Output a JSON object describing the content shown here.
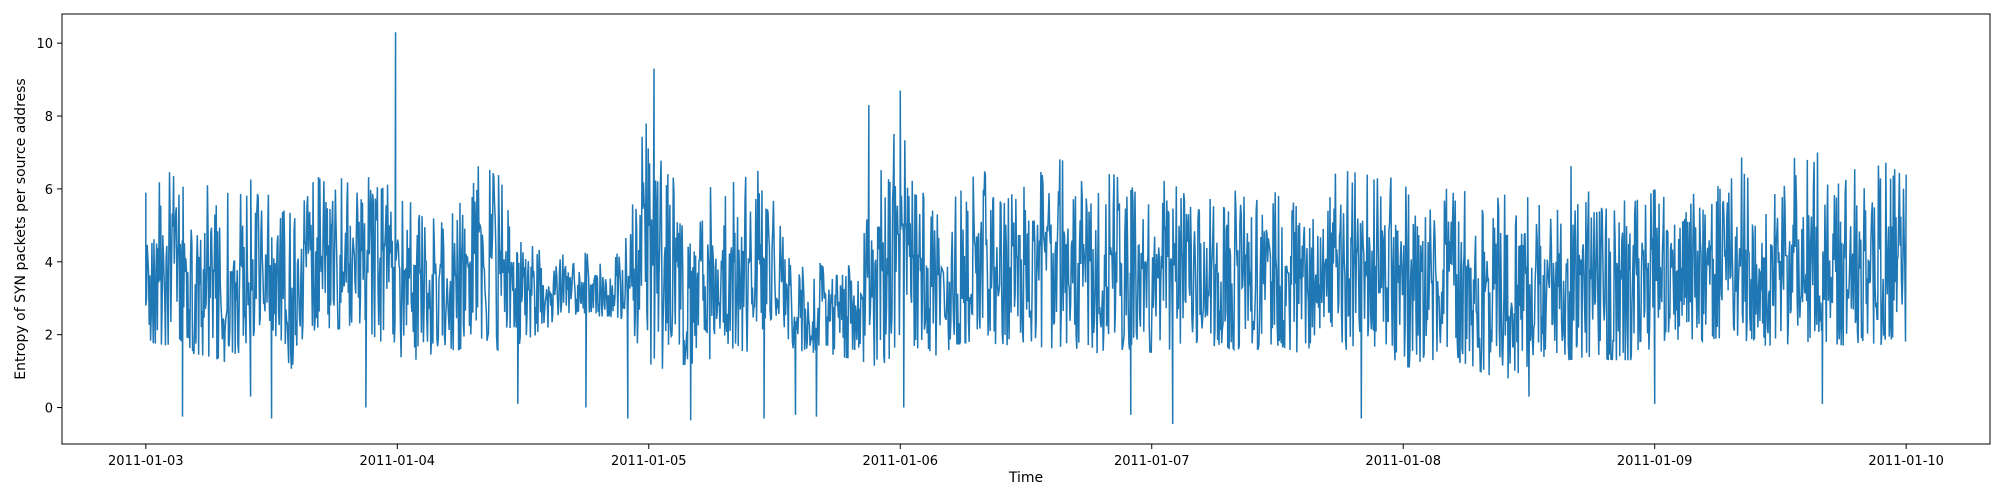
{
  "chart_data": {
    "type": "line",
    "title": "",
    "xlabel": "Time",
    "ylabel": "Entropy of SYN packets per source address",
    "xlim": [
      "2011-01-02T16:00",
      "2011-01-10T08:00"
    ],
    "ylim": [
      -1,
      10.8
    ],
    "x_ticks": [
      "2011-01-03",
      "2011-01-04",
      "2011-01-05",
      "2011-01-06",
      "2011-01-07",
      "2011-01-08",
      "2011-01-09",
      "2011-01-10"
    ],
    "y_ticks": [
      0,
      2,
      4,
      6,
      8,
      10
    ],
    "grid": false,
    "legend": "none",
    "series": [
      {
        "color": "#1f77b4",
        "x": [
          "2011-01-03T00:00",
          "2011-01-03T02:00",
          "2011-01-03T04:00",
          "2011-01-03T06:00",
          "2011-01-03T08:00",
          "2011-01-03T10:00",
          "2011-01-03T12:00",
          "2011-01-03T14:00",
          "2011-01-03T16:00",
          "2011-01-03T18:00",
          "2011-01-03T20:00",
          "2011-01-03T22:00",
          "2011-01-04T00:00",
          "2011-01-04T02:00",
          "2011-01-04T04:00",
          "2011-01-04T06:00",
          "2011-01-04T08:00",
          "2011-01-04T10:00",
          "2011-01-04T12:00",
          "2011-01-04T14:00",
          "2011-01-04T16:00",
          "2011-01-04T18:00",
          "2011-01-04T20:00",
          "2011-01-04T22:00",
          "2011-01-05T00:00",
          "2011-01-05T02:00",
          "2011-01-05T04:00",
          "2011-01-05T06:00",
          "2011-01-05T08:00",
          "2011-01-05T10:00",
          "2011-01-05T12:00",
          "2011-01-05T14:00",
          "2011-01-05T16:00",
          "2011-01-05T18:00",
          "2011-01-05T20:00",
          "2011-01-05T22:00",
          "2011-01-06T00:00",
          "2011-01-06T02:00",
          "2011-01-06T04:00",
          "2011-01-06T06:00",
          "2011-01-06T08:00",
          "2011-01-06T10:00",
          "2011-01-06T12:00",
          "2011-01-06T14:00",
          "2011-01-06T16:00",
          "2011-01-06T18:00",
          "2011-01-06T20:00",
          "2011-01-06T22:00",
          "2011-01-07T00:00",
          "2011-01-07T02:00",
          "2011-01-07T04:00",
          "2011-01-07T06:00",
          "2011-01-07T08:00",
          "2011-01-07T10:00",
          "2011-01-07T12:00",
          "2011-01-07T14:00",
          "2011-01-07T16:00",
          "2011-01-07T18:00",
          "2011-01-07T20:00",
          "2011-01-07T22:00",
          "2011-01-08T00:00",
          "2011-01-08T02:00",
          "2011-01-08T04:00",
          "2011-01-08T06:00",
          "2011-01-08T08:00",
          "2011-01-08T10:00",
          "2011-01-08T12:00",
          "2011-01-08T14:00",
          "2011-01-08T16:00",
          "2011-01-08T18:00",
          "2011-01-08T20:00",
          "2011-01-08T22:00",
          "2011-01-09T00:00",
          "2011-01-09T02:00",
          "2011-01-09T04:00",
          "2011-01-09T06:00",
          "2011-01-09T08:00",
          "2011-01-09T10:00",
          "2011-01-09T12:00",
          "2011-01-09T14:00",
          "2011-01-09T16:00",
          "2011-01-09T18:00",
          "2011-01-09T20:00",
          "2011-01-09T22:00",
          "2011-01-10T00:00"
        ],
        "min": [
          1.8,
          1.7,
          1.5,
          1.4,
          1.2,
          1.9,
          2.2,
          1.0,
          2.0,
          2.1,
          2.3,
          1.9,
          1.4,
          1.3,
          1.5,
          1.6,
          1.9,
          1.5,
          1.8,
          2.1,
          2.6,
          2.5,
          2.5,
          2.4,
          1.0,
          1.1,
          1.2,
          1.3,
          1.6,
          1.5,
          2.6,
          1.5,
          1.5,
          1.4,
          1.3,
          1.1,
          1.6,
          1.5,
          1.4,
          1.8,
          1.6,
          1.7,
          1.8,
          1.6,
          1.7,
          1.5,
          1.4,
          1.6,
          1.5,
          1.6,
          1.8,
          1.6,
          1.6,
          1.6,
          1.7,
          1.5,
          1.6,
          1.5,
          1.8,
          1.6,
          1.1,
          1.1,
          1.2,
          1.2,
          0.9,
          0.8,
          1.1,
          1.3,
          1.3,
          1.4,
          1.3,
          1.3,
          1.7,
          1.6,
          1.8,
          1.9,
          1.9,
          1.7,
          1.7,
          1.8,
          1.8,
          1.7,
          1.8,
          1.7,
          1.7
        ],
        "max": [
          6.5,
          6.9,
          6.3,
          6.6,
          6.6,
          6.6,
          6.0,
          6.0,
          6.8,
          6.7,
          6.5,
          7.0,
          6.5,
          6.0,
          6.0,
          6.0,
          7.1,
          6.9,
          4.9,
          4.6,
          4.3,
          4.4,
          4.2,
          4.9,
          9.3,
          7.1,
          6.7,
          6.5,
          6.7,
          7.0,
          6.3,
          4.2,
          4.1,
          4.3,
          4.2,
          8.3,
          8.6,
          6.3,
          6.1,
          6.6,
          6.9,
          6.0,
          6.5,
          7.4,
          7.2,
          6.5,
          6.9,
          6.6,
          6.5,
          6.6,
          6.5,
          6.2,
          6.6,
          6.4,
          6.3,
          6.1,
          6.0,
          7.0,
          6.7,
          7.0,
          6.6,
          5.6,
          6.3,
          6.8,
          5.8,
          6.5,
          6.1,
          5.7,
          7.5,
          6.0,
          6.0,
          6.4,
          6.3,
          6.2,
          7.2,
          6.6,
          7.4,
          7.0,
          6.6,
          7.5,
          7.3,
          7.3,
          7.2,
          7.1,
          6.7
        ],
        "spikes": [
          {
            "x": "2011-01-03T00:00",
            "y": 2.8
          },
          {
            "x": "2011-01-03T03:30",
            "y": -0.25
          },
          {
            "x": "2011-01-03T12:00",
            "y": -0.3
          },
          {
            "x": "2011-01-03T10:00",
            "y": 0.3
          },
          {
            "x": "2011-01-03T21:00",
            "y": 0.0
          },
          {
            "x": "2011-01-03T23:50",
            "y": 10.3
          },
          {
            "x": "2011-01-04T11:30",
            "y": 0.1
          },
          {
            "x": "2011-01-04T18:00",
            "y": 0.0
          },
          {
            "x": "2011-01-04T22:00",
            "y": -0.3
          },
          {
            "x": "2011-01-05T00:30",
            "y": 9.3
          },
          {
            "x": "2011-01-05T04:00",
            "y": -0.35
          },
          {
            "x": "2011-01-05T11:00",
            "y": -0.3
          },
          {
            "x": "2011-01-05T14:00",
            "y": -0.2
          },
          {
            "x": "2011-01-05T16:00",
            "y": -0.25
          },
          {
            "x": "2011-01-05T21:00",
            "y": 8.3
          },
          {
            "x": "2011-01-06T00:00",
            "y": 8.7
          },
          {
            "x": "2011-01-06T00:20",
            "y": 0.0
          },
          {
            "x": "2011-01-06T22:00",
            "y": -0.2
          },
          {
            "x": "2011-01-07T02:00",
            "y": -0.45
          },
          {
            "x": "2011-01-07T20:00",
            "y": -0.3
          },
          {
            "x": "2011-01-08T12:00",
            "y": 0.3
          },
          {
            "x": "2011-01-09T00:00",
            "y": 0.1
          },
          {
            "x": "2011-01-09T16:00",
            "y": 0.1
          }
        ]
      }
    ]
  }
}
